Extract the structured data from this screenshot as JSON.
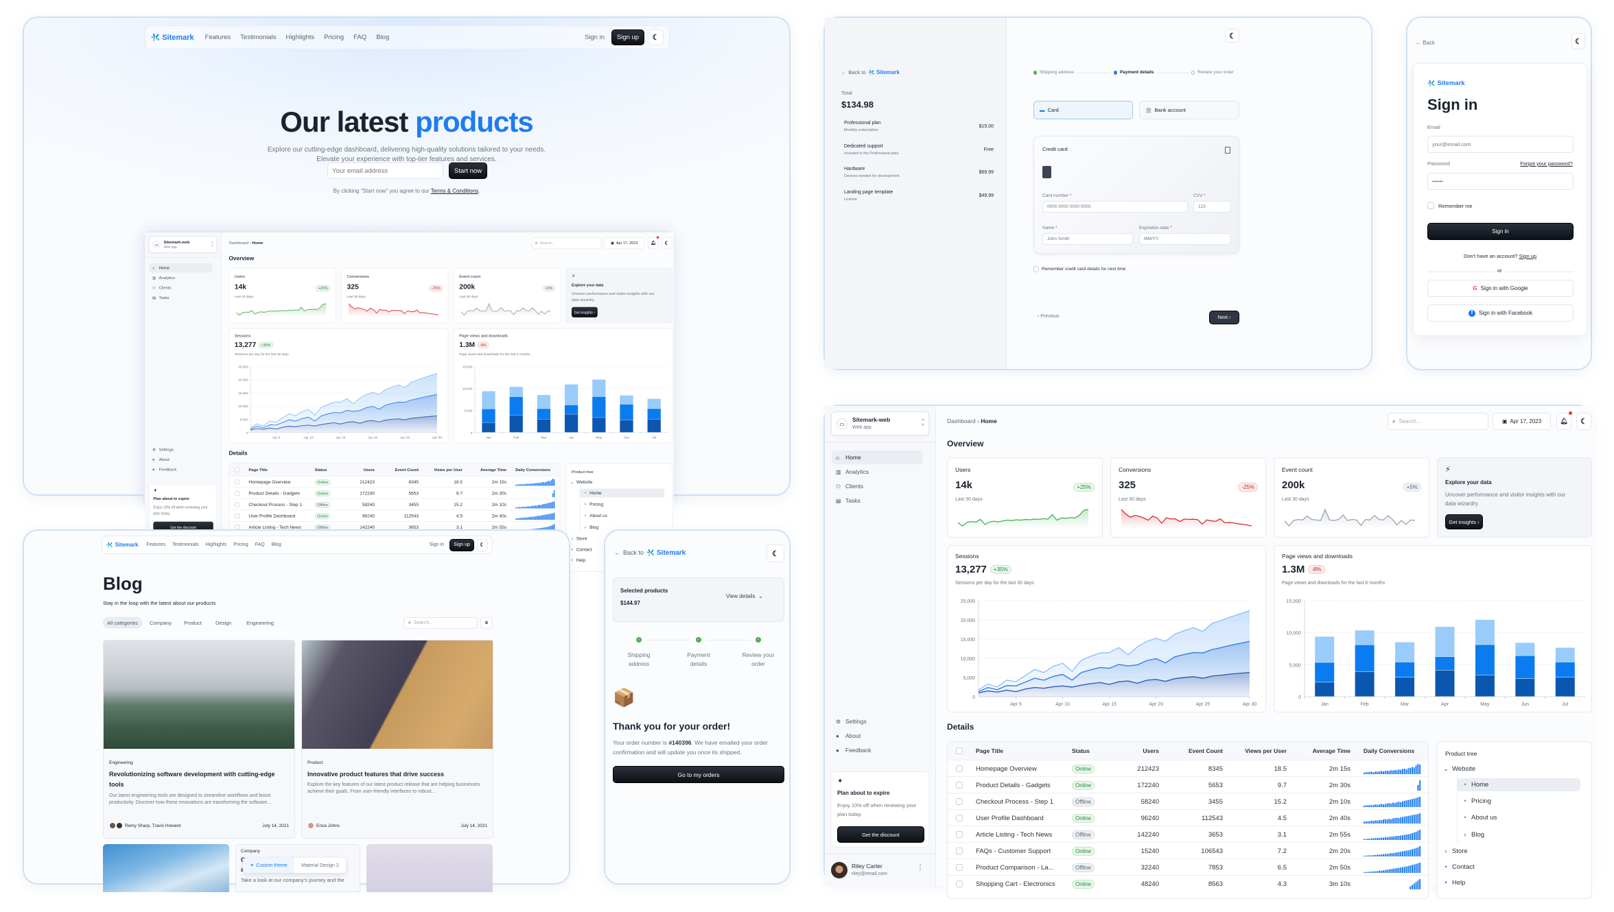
{
  "brand": {
    "name": "Sitemark",
    "colors": {
      "accent": "#1f7cf0",
      "dark_button": "#0d1117",
      "panel_border": "#cfe0f6"
    }
  },
  "landing": {
    "nav": {
      "links": [
        "Features",
        "Testimonials",
        "Highlights",
        "Pricing",
        "FAQ",
        "Blog"
      ],
      "sign_in": "Sign in",
      "sign_up": "Sign up",
      "theme_icon": "moon-icon"
    },
    "title_plain": "Our latest",
    "title_accent": "products",
    "subtitle_1": "Explore our cutting-edge dashboard, delivering high-quality solutions tailored to your needs.",
    "subtitle_2": "Elevate your experience with top-tier features and services.",
    "email_placeholder": "Your email address",
    "start_button": "Start now",
    "terms_prefix": "By clicking \"Start now\" you agree to our",
    "terms_link": "Terms & Conditions",
    "terms_suffix": "."
  },
  "checkout": {
    "back_to": "Back to",
    "total_label": "Total",
    "total": "$134.98",
    "items": [
      {
        "name": "Professional plan",
        "desc": "Monthly subscription",
        "price": "$15.00"
      },
      {
        "name": "Dedicated support",
        "desc": "Included in the Professional plan",
        "price": "Free"
      },
      {
        "name": "Hardware",
        "desc": "Devices needed for development",
        "price": "$69.99"
      },
      {
        "name": "Landing page template",
        "desc": "License",
        "price": "$49.99"
      }
    ],
    "steps": [
      "Shipping address",
      "Payment details",
      "Review your order"
    ],
    "active_step": 2,
    "methods": [
      "Card",
      "Bank account"
    ],
    "selected_method": "Card",
    "credit_card_title": "Credit card",
    "card_number_label": "Card number *",
    "card_number_placeholder": "0000 0000 0000 0000",
    "cvv_label": "CVV *",
    "cvv_placeholder": "123",
    "name_label": "Name *",
    "name_placeholder": "John Smith",
    "exp_label": "Expiration date *",
    "exp_placeholder": "MM/YY",
    "remember": "Remember credit card details for next time",
    "previous": "Previous",
    "next": "Next"
  },
  "signin": {
    "back": "Back",
    "title": "Sign in",
    "email_label": "Email",
    "email_placeholder": "your@email.com",
    "password_label": "Password",
    "forgot": "Forgot your password?",
    "password_value": "••••••",
    "remember": "Remember me",
    "submit": "Sign in",
    "no_account": "Don't have an account?",
    "sign_up": "Sign up",
    "or": "or",
    "google": "Sign in with Google",
    "facebook": "Sign in with Facebook"
  },
  "blog": {
    "title": "Blog",
    "subtitle": "Stay in the loop with the latest about our products",
    "categories": [
      "All categories",
      "Company",
      "Product",
      "Design",
      "Engineering"
    ],
    "selected_category": "All categories",
    "search_placeholder": "Search...",
    "posts": [
      {
        "tag": "Engineering",
        "title": "Revolutionizing software development with cutting-edge tools",
        "desc": "Our latest engineering tools are designed to streamline workflows and boost productivity. Discover how these innovations are transforming the software...",
        "authors": "Remy Sharp, Travis Howard",
        "date": "July 14, 2021"
      },
      {
        "tag": "Product",
        "title": "Innovative product features that drive success",
        "desc": "Explore the key features of our latest product release that are helping businesses achieve their goals. From user-friendly interfaces to robust...",
        "authors": "Erica Johns",
        "date": "July 14, 2021"
      }
    ],
    "partial_post": {
      "tag": "Company",
      "title_start_1": "O",
      "title_start_2": "ar",
      "desc": "Take a look at our company's journey and the"
    },
    "theme_toggle": {
      "custom": "Custom theme",
      "material": "Material Design 2",
      "selected": "Custom theme"
    }
  },
  "order_success": {
    "back_to": "Back to",
    "selected_products": "Selected products",
    "amount": "$144.97",
    "view_details": "View details",
    "steps": [
      "Shipping address",
      "Payment details",
      "Review your order"
    ],
    "emoji": "📦",
    "title": "Thank you for your order!",
    "msg_prefix": "Your order number is",
    "order_number": "#140396",
    "msg_suffix": ". We have emailed your order confirmation and will update you once its shipped.",
    "button": "Go to my orders"
  },
  "dashboard": {
    "app": {
      "name": "Sitemark-web",
      "type": "Web app"
    },
    "breadcrumb": [
      "Dashboard",
      "Home"
    ],
    "search_placeholder": "Search...",
    "date": "Apr 17, 2023",
    "nav": [
      "Home",
      "Analytics",
      "Clients",
      "Tasks"
    ],
    "nav_icons": [
      "home-icon",
      "analytics-icon",
      "clients-icon",
      "tasks-icon"
    ],
    "active_nav": "Home",
    "secondary_nav": [
      "Settings",
      "About",
      "Feedback"
    ],
    "plan_card": {
      "title": "Plan about to expire",
      "text": "Enjoy 10% off when renewing your plan today.",
      "button": "Get the discount"
    },
    "user": {
      "name": "Riley Carter",
      "email": "riley@email.com"
    },
    "overview_title": "Overview",
    "stats": [
      {
        "title": "Users",
        "value": "14k",
        "badge": "+25%",
        "trend": "up",
        "period": "Last 30 days",
        "color": "#4caf50",
        "data": [
          200,
          24,
          220,
          260,
          240,
          380,
          100,
          240,
          280,
          240,
          300,
          340,
          320,
          360,
          340,
          380,
          360,
          400,
          380,
          420,
          400,
          640,
          340,
          460,
          440,
          480,
          460,
          600,
          880,
          920
        ]
      },
      {
        "title": "Conversions",
        "value": "325",
        "badge": "-25%",
        "trend": "down",
        "period": "Last 30 days",
        "color": "#d32f2f",
        "data": [
          1640,
          1250,
          970,
          1130,
          1050,
          900,
          720,
          1080,
          900,
          450,
          920,
          820,
          840,
          600,
          820,
          780,
          800,
          760,
          380,
          740,
          660,
          620,
          840,
          500,
          520,
          480,
          400,
          360,
          300,
          220
        ]
      },
      {
        "title": "Event count",
        "value": "200k",
        "badge": "+5%",
        "trend": "neutral",
        "period": "Last 30 days",
        "color": "#9aa4b2",
        "data": [
          500,
          400,
          510,
          530,
          520,
          600,
          530,
          520,
          510,
          730,
          520,
          510,
          530,
          620,
          510,
          530,
          520,
          410,
          530,
          520,
          610,
          530,
          520,
          610,
          530,
          420,
          510,
          430,
          520,
          510
        ]
      }
    ],
    "explore": {
      "title": "Explore your data",
      "text": "Uncover performance and visitor insights with our data wizardry.",
      "button": "Get insights"
    },
    "sessions": {
      "title": "Sessions",
      "value": "13,277",
      "badge": "+35%",
      "subtitle": "Sessions per day for the last 30 days",
      "chart_data": {
        "type": "area",
        "stacked": true,
        "ylim": [
          0,
          25000
        ],
        "yticks": [
          "0",
          "5,000",
          "10,000",
          "15,000",
          "20,000",
          "25,000"
        ],
        "xticks": [
          "Apr 5",
          "Apr 10",
          "Apr 15",
          "Apr 20",
          "Apr 25",
          "Apr 30"
        ],
        "x_days": [
          1,
          2,
          3,
          4,
          5,
          6,
          7,
          8,
          9,
          10,
          11,
          12,
          13,
          14,
          15,
          16,
          17,
          18,
          19,
          20,
          21,
          22,
          23,
          24,
          25,
          26,
          27,
          28,
          29,
          30
        ],
        "colors": [
          "#2d5fb8",
          "#2f7fe6",
          "#8fc0f7"
        ],
        "series": [
          {
            "values": [
              1000,
              1500,
              1200,
              1700,
              1300,
              2000,
              2400,
              2200,
              2600,
              2800,
              2500,
              3000,
              3400,
              3700,
              3200,
              3900,
              4100,
              3500,
              4300,
              4500,
              4000,
              4700,
              5000,
              5200,
              4800,
              5400,
              5600,
              5900,
              6100,
              6300
            ]
          },
          {
            "values": [
              300,
              900,
              600,
              1200,
              1500,
              1800,
              2400,
              2100,
              2700,
              3000,
              1800,
              3300,
              3600,
              3900,
              4200,
              4500,
              3900,
              4800,
              5100,
              5400,
              4800,
              5700,
              6000,
              6300,
              6600,
              6900,
              7200,
              7500,
              7800,
              8100
            ]
          },
          {
            "values": [
              500,
              900,
              700,
              1400,
              1100,
              1700,
              2300,
              2000,
              2600,
              2900,
              2300,
              3200,
              3500,
              3800,
              4100,
              4400,
              2900,
              4700,
              5000,
              5300,
              5600,
              5900,
              6200,
              6500,
              5600,
              6800,
              7100,
              7400,
              7700,
              8000
            ]
          }
        ]
      }
    },
    "pageviews": {
      "title": "Page views and downloads",
      "value": "1.3M",
      "badge": "-8%",
      "subtitle": "Page views and downloads for the last 6 months",
      "chart_data": {
        "type": "bar",
        "stacked": true,
        "ylim": [
          0,
          15000
        ],
        "yticks": [
          "0",
          "5,000",
          "10,000",
          "15,000"
        ],
        "categories": [
          "Jan",
          "Feb",
          "Mar",
          "Apr",
          "May",
          "Jun",
          "Jul"
        ],
        "colors": [
          "#0b57b0",
          "#0a7cf0",
          "#99ccfb"
        ],
        "series": [
          {
            "values": [
              2234,
              3872,
              2998,
              4125,
              3357,
              2789,
              2998
            ]
          },
          {
            "values": [
              3098,
              4215,
              2384,
              2101,
              4752,
              3593,
              2384
            ]
          },
          {
            "values": [
              4051,
              2275,
              3129,
              4693,
              3904,
              2038,
              2275
            ]
          }
        ]
      }
    },
    "details_title": "Details",
    "table": {
      "columns": [
        "Page Title",
        "Status",
        "Users",
        "Event Count",
        "Views per User",
        "Average Time",
        "Daily Conversions"
      ],
      "rows": [
        {
          "title": "Homepage Overview",
          "status": "Online",
          "users": "212423",
          "events": "8345",
          "views": "18.5",
          "time": "2m 15s",
          "conv": [
            4,
            5,
            5,
            6,
            6,
            5,
            7,
            6,
            7,
            8,
            7,
            8,
            9,
            8,
            10,
            9,
            11,
            10,
            12,
            11,
            13,
            14,
            12,
            15,
            16,
            18,
            17,
            22,
            26,
            24
          ]
        },
        {
          "title": "Product Details - Gadgets",
          "status": "Online",
          "users": "172240",
          "events": "5653",
          "views": "9.7",
          "time": "2m 30s",
          "conv": [
            0,
            0,
            0,
            0,
            0,
            0,
            0,
            0,
            0,
            0,
            0,
            0,
            0,
            0,
            0,
            0,
            0,
            0,
            0,
            0,
            0,
            0,
            0,
            0,
            0,
            0,
            0,
            0,
            10,
            18
          ]
        },
        {
          "title": "Checkout Process - Step 1",
          "status": "Offline",
          "users": "58240",
          "events": "3455",
          "views": "15.2",
          "time": "2m 10s",
          "conv": [
            3,
            4,
            4,
            5,
            4,
            5,
            6,
            5,
            6,
            7,
            6,
            7,
            8,
            9,
            8,
            10,
            9,
            11,
            12,
            11,
            13,
            14,
            15,
            16,
            17,
            18,
            19,
            20,
            22,
            23
          ]
        },
        {
          "title": "User Profile Dashboard",
          "status": "Online",
          "users": "96240",
          "events": "112543",
          "views": "4.5",
          "time": "2m 40s",
          "conv": [
            5,
            6,
            6,
            7,
            8,
            7,
            9,
            8,
            10,
            9,
            11,
            12,
            11,
            13,
            12,
            14,
            15,
            16,
            15,
            17,
            18,
            19,
            20,
            21,
            22,
            23,
            24,
            25,
            26,
            28
          ]
        },
        {
          "title": "Article Listing - Tech News",
          "status": "Offline",
          "users": "142240",
          "events": "3653",
          "views": "3.1",
          "time": "2m 55s",
          "conv": [
            3,
            3,
            4,
            4,
            5,
            5,
            6,
            6,
            6,
            7,
            7,
            8,
            8,
            9,
            10,
            10,
            11,
            12,
            12,
            13,
            14,
            15,
            16,
            17,
            18,
            20,
            22,
            24,
            27,
            30
          ]
        },
        {
          "title": "FAQs - Customer Support",
          "status": "Online",
          "users": "15240",
          "events": "106543",
          "views": "7.2",
          "time": "2m 20s",
          "conv": [
            2,
            2,
            3,
            3,
            3,
            4,
            4,
            5,
            5,
            6,
            6,
            7,
            7,
            8,
            9,
            9,
            10,
            11,
            12,
            13,
            14,
            15,
            16,
            17,
            18,
            20,
            21,
            23,
            25,
            28
          ]
        },
        {
          "title": "Product Comparison - La...",
          "status": "Offline",
          "users": "32240",
          "events": "7853",
          "views": "6.5",
          "time": "2m 50s",
          "conv": [
            2,
            3,
            3,
            4,
            4,
            5,
            5,
            6,
            7,
            7,
            8,
            9,
            10,
            11,
            12,
            13,
            14,
            15,
            16,
            17,
            18,
            19,
            20,
            22,
            23,
            25,
            26,
            28,
            30,
            32
          ]
        },
        {
          "title": "Shopping Cart - Electronics",
          "status": "Online",
          "users": "48240",
          "events": "8563",
          "views": "4.3",
          "time": "3m 10s",
          "conv": [
            0,
            0,
            0,
            0,
            0,
            0,
            0,
            0,
            0,
            0,
            0,
            0,
            0,
            0,
            0,
            0,
            0,
            0,
            0,
            0,
            0,
            0,
            0,
            0,
            4,
            6,
            8,
            10,
            12,
            14
          ]
        }
      ]
    },
    "tree": {
      "title": "Product tree",
      "items": [
        {
          "label": "Website",
          "level": 0,
          "kind": "expanded"
        },
        {
          "label": "Home",
          "level": 1,
          "kind": "dot",
          "selected": true
        },
        {
          "label": "Pricing",
          "level": 1,
          "kind": "dot"
        },
        {
          "label": "About us",
          "level": 1,
          "kind": "dot"
        },
        {
          "label": "Blog",
          "level": 1,
          "kind": "collapsed"
        },
        {
          "label": "Store",
          "level": 0,
          "kind": "collapsed"
        },
        {
          "label": "Contact",
          "level": 0,
          "kind": "dot-blue"
        },
        {
          "label": "Help",
          "level": 0,
          "kind": "dot-blue"
        }
      ]
    }
  }
}
